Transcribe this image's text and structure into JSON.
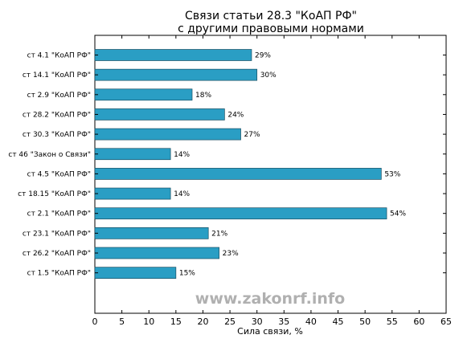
{
  "chart_data": {
    "type": "bar",
    "orientation": "horizontal",
    "title_line1": "Связи статьи 28.3 \"КоАП РФ\"",
    "title_line2": "с другими правовыми нормами",
    "xlabel": "Сила связи, %",
    "ylabel": "",
    "xlim": [
      0,
      65
    ],
    "xticks": [
      0,
      5,
      10,
      15,
      20,
      25,
      30,
      35,
      40,
      45,
      50,
      55,
      60,
      65
    ],
    "grid": false,
    "bar_color": "#2a9ec4",
    "value_suffix": "%",
    "categories": [
      "ст 4.1 \"КоАП РФ\"",
      "ст 14.1 \"КоАП РФ\"",
      "ст 2.9 \"КоАП РФ\"",
      "ст 28.2 \"КоАП РФ\"",
      "ст 30.3 \"КоАП РФ\"",
      "ст 46 \"Закон о Связи\"",
      "ст 4.5 \"КоАП РФ\"",
      "ст 18.15 \"КоАП РФ\"",
      "ст 2.1 \"КоАП РФ\"",
      "ст 23.1 \"КоАП РФ\"",
      "ст 26.2 \"КоАП РФ\"",
      "ст 1.5 \"КоАП РФ\""
    ],
    "values": [
      29,
      30,
      18,
      24,
      27,
      14,
      53,
      14,
      54,
      21,
      23,
      15
    ]
  },
  "watermark": "www.zakonrf.info"
}
